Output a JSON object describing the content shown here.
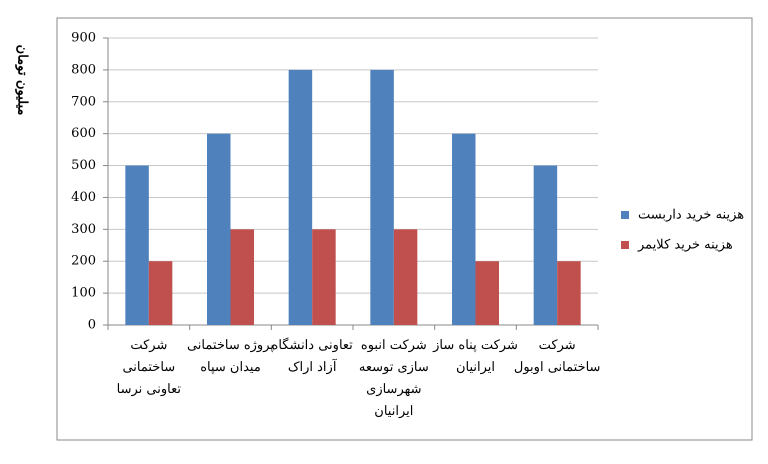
{
  "chart_data": {
    "type": "bar",
    "y_label": "میلیون تومان",
    "categories": [
      "شرکت\nساختمانی\nتعاونی نرسا",
      "پروژه ساختمانی\nمیدان سپاه",
      "تعاونی دانشگاه\nآزاد اراک",
      "شرکت انبوه\nسازی توسعه\nشهرسازی\nایرانیان",
      "شرکت پناه ساز\nایرانیان",
      "شرکت\nساختمانی اوبول"
    ],
    "series": [
      {
        "name": "هزینه خرید داربست",
        "color": "#4f81bd",
        "values": [
          500,
          600,
          800,
          800,
          600,
          500
        ]
      },
      {
        "name": "هزینه خرید کلایمر",
        "color": "#c0504d",
        "values": [
          200,
          300,
          300,
          300,
          200,
          200
        ]
      }
    ],
    "ylim": [
      0,
      900
    ],
    "yticks": [
      0,
      100,
      200,
      300,
      400,
      500,
      600,
      700,
      800,
      900
    ],
    "grid": true,
    "legend": "right"
  }
}
